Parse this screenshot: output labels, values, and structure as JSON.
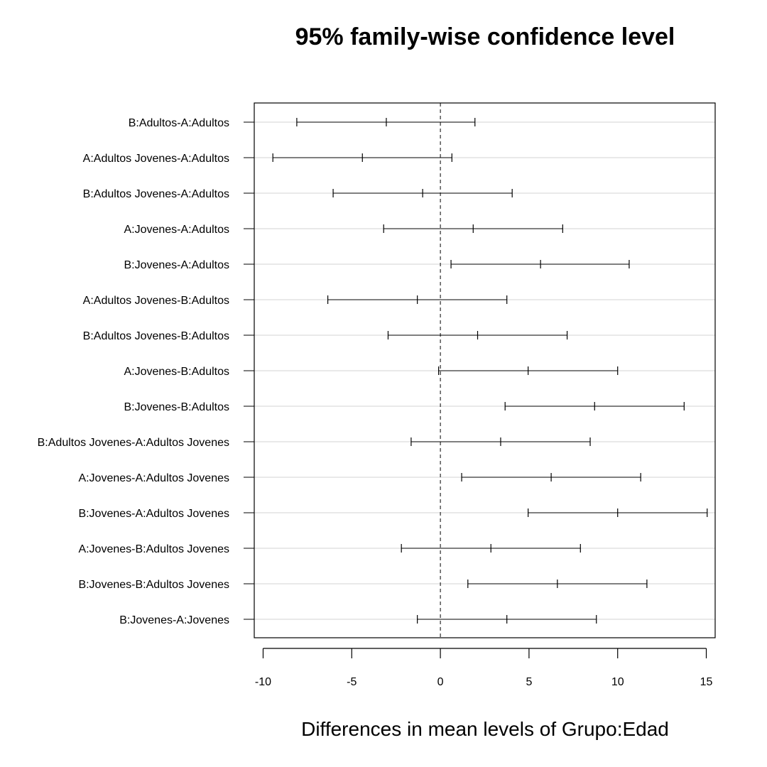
{
  "chart_data": {
    "type": "interval",
    "title": "95% family-wise confidence level",
    "xlabel": "Differences in mean levels of Grupo:Edad",
    "ylabel": "",
    "xlim": [
      -10.5,
      15.5
    ],
    "xticks": [
      -10,
      -5,
      0,
      5,
      10,
      15
    ],
    "xtick_labels": [
      "-10",
      "-5",
      "0",
      "5",
      "10",
      "15"
    ],
    "reference_line": 0,
    "grid": "horizontal",
    "comparisons": [
      {
        "label": "B:Adultos-A:Adultos",
        "lwr": -8.1,
        "diff": -3.05,
        "upr": 1.95
      },
      {
        "label": "A:Adultos Jovenes-A:Adultos",
        "lwr": -9.45,
        "diff": -4.4,
        "upr": 0.65
      },
      {
        "label": "B:Adultos Jovenes-A:Adultos",
        "lwr": -6.05,
        "diff": -1.0,
        "upr": 4.05
      },
      {
        "label": "A:Jovenes-A:Adultos",
        "lwr": -3.2,
        "diff": 1.85,
        "upr": 6.9
      },
      {
        "label": "B:Jovenes-A:Adultos",
        "lwr": 0.6,
        "diff": 5.65,
        "upr": 10.65
      },
      {
        "label": "A:Adultos Jovenes-B:Adultos",
        "lwr": -6.35,
        "diff": -1.3,
        "upr": 3.75
      },
      {
        "label": "B:Adultos Jovenes-B:Adultos",
        "lwr": -2.95,
        "diff": 2.1,
        "upr": 7.15
      },
      {
        "label": "A:Jovenes-B:Adultos",
        "lwr": -0.1,
        "diff": 4.95,
        "upr": 10.0
      },
      {
        "label": "B:Jovenes-B:Adultos",
        "lwr": 3.65,
        "diff": 8.7,
        "upr": 13.75
      },
      {
        "label": "B:Adultos Jovenes-A:Adultos Jovenes",
        "lwr": -1.65,
        "diff": 3.4,
        "upr": 8.45
      },
      {
        "label": "A:Jovenes-A:Adultos Jovenes",
        "lwr": 1.2,
        "diff": 6.25,
        "upr": 11.3
      },
      {
        "label": "B:Jovenes-A:Adultos Jovenes",
        "lwr": 4.95,
        "diff": 10.0,
        "upr": 15.05
      },
      {
        "label": "A:Jovenes-B:Adultos Jovenes",
        "lwr": -2.2,
        "diff": 2.85,
        "upr": 7.9
      },
      {
        "label": "B:Jovenes-B:Adultos Jovenes",
        "lwr": 1.55,
        "diff": 6.6,
        "upr": 11.65
      },
      {
        "label": "B:Jovenes-A:Jovenes",
        "lwr": -1.3,
        "diff": 3.75,
        "upr": 8.8
      }
    ]
  }
}
